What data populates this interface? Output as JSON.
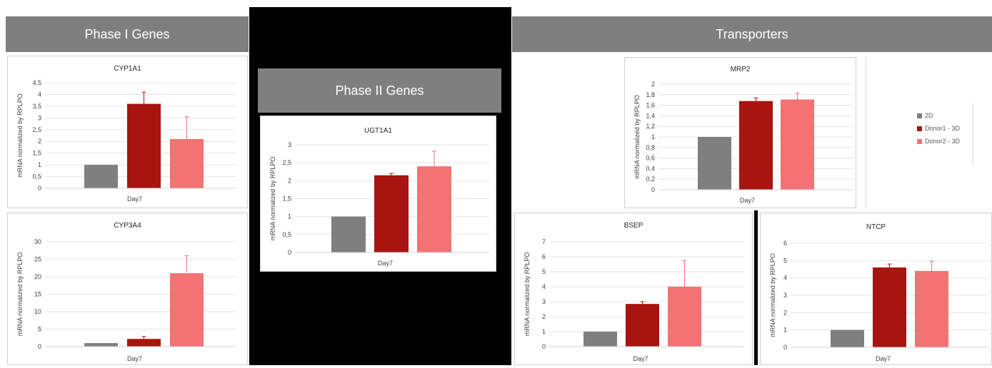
{
  "sections": {
    "phase1": "Phase I Genes",
    "phase2": "Phase II Genes",
    "transporters": "Transporters"
  },
  "legend": [
    {
      "label": "2D",
      "color": "#7f7f7f"
    },
    {
      "label": "Donor1 - 3D",
      "color": "#a8140f"
    },
    {
      "label": "Donor2 - 3D",
      "color": "#f37273"
    }
  ],
  "chart_data": [
    {
      "type": "bar",
      "title": "CYP1A1",
      "ylabel": "mRNA normalized by RPLPO",
      "xlabel": "Day7",
      "ylim": [
        0,
        4.5
      ],
      "ticks": [
        "0",
        "0,5",
        "1",
        "1,5",
        "2",
        "2,5",
        "3",
        "3,5",
        "4",
        "4,5"
      ],
      "series": [
        {
          "name": "2D",
          "values": [
            1.0
          ]
        },
        {
          "name": "Donor1 - 3D",
          "values": [
            3.6
          ]
        },
        {
          "name": "Donor2 - 3D",
          "values": [
            2.1
          ]
        }
      ],
      "errors": [
        0,
        0.5,
        0.95
      ]
    },
    {
      "type": "bar",
      "title": "CYP3A4",
      "ylabel": "mRNA normalized by RPLPO",
      "xlabel": "Day7",
      "ylim": [
        0,
        30
      ],
      "ticks": [
        "0",
        "5",
        "10",
        "15",
        "20",
        "25",
        "30"
      ],
      "series": [
        {
          "name": "2D",
          "values": [
            1.0
          ]
        },
        {
          "name": "Donor1 - 3D",
          "values": [
            2.2
          ]
        },
        {
          "name": "Donor2 - 3D",
          "values": [
            21.0
          ]
        }
      ],
      "errors": [
        0,
        0.7,
        5.0
      ]
    },
    {
      "type": "bar",
      "title": "UGT1A1",
      "ylabel": "mRNA normalized by RPLPO",
      "xlabel": "Day7",
      "ylim": [
        0,
        3
      ],
      "ticks": [
        "0",
        "0,5",
        "1",
        "1,5",
        "2",
        "2,5",
        "3"
      ],
      "series": [
        {
          "name": "2D",
          "values": [
            1.0
          ]
        },
        {
          "name": "Donor1 - 3D",
          "values": [
            2.15
          ]
        },
        {
          "name": "Donor2 - 3D",
          "values": [
            2.4
          ]
        }
      ],
      "errors": [
        0,
        0.05,
        0.42
      ]
    },
    {
      "type": "bar",
      "title": "MRP2",
      "ylabel": "mRNA normalized by RPLPO",
      "xlabel": "Day7",
      "ylim": [
        0,
        2
      ],
      "ticks": [
        "0",
        "0,2",
        "0,4",
        "0,6",
        "0,8",
        "1",
        "1,2",
        "1,4",
        "1,6",
        "1,8",
        "2"
      ],
      "series": [
        {
          "name": "2D",
          "values": [
            1.0
          ]
        },
        {
          "name": "Donor1 - 3D",
          "values": [
            1.68
          ]
        },
        {
          "name": "Donor2 - 3D",
          "values": [
            1.71
          ]
        }
      ],
      "errors": [
        0,
        0.06,
        0.12
      ]
    },
    {
      "type": "bar",
      "title": "BSEP",
      "ylabel": "mRNA normalized by RPLPO",
      "xlabel": "Day7",
      "ylim": [
        0,
        7
      ],
      "ticks": [
        "0",
        "1",
        "2",
        "3",
        "4",
        "5",
        "6",
        "7"
      ],
      "series": [
        {
          "name": "2D",
          "values": [
            1.0
          ]
        },
        {
          "name": "Donor1 - 3D",
          "values": [
            2.85
          ]
        },
        {
          "name": "Donor2 - 3D",
          "values": [
            4.0
          ]
        }
      ],
      "errors": [
        0,
        0.15,
        1.75
      ]
    },
    {
      "type": "bar",
      "title": "NTCP",
      "ylabel": "mRNA normalized by RPLPO",
      "xlabel": "Day7",
      "ylim": [
        0,
        6
      ],
      "ticks": [
        "0",
        "1",
        "2",
        "3",
        "4",
        "5",
        "6"
      ],
      "series": [
        {
          "name": "2D",
          "values": [
            1.0
          ]
        },
        {
          "name": "Donor1 - 3D",
          "values": [
            4.6
          ]
        },
        {
          "name": "Donor2 - 3D",
          "values": [
            4.4
          ]
        }
      ],
      "errors": [
        0,
        0.2,
        0.55
      ]
    }
  ]
}
